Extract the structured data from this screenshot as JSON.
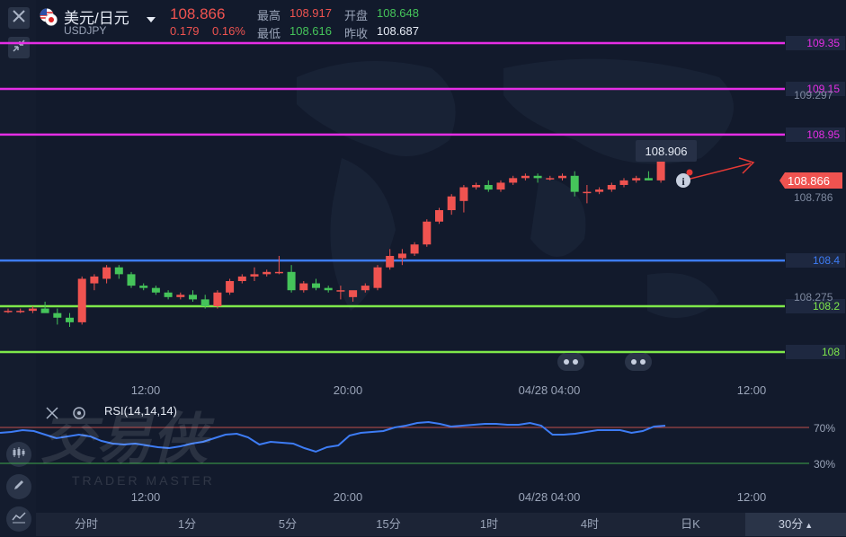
{
  "header": {
    "pair_name": "美元/日元",
    "pair_code": "USDJPY",
    "last_price": "108.866",
    "change": "0.179",
    "change_pct": "0.16%",
    "high_label": "最高",
    "high_value": "108.917",
    "low_label": "最低",
    "low_value": "108.616",
    "open_label": "开盘",
    "open_value": "108.648",
    "prev_close_label": "昨收",
    "prev_close_value": "108.687"
  },
  "levels": [
    {
      "price": 109.35,
      "label": "109.35",
      "color": "#e52ee5"
    },
    {
      "price": 109.15,
      "label": "109.15",
      "color": "#e52ee5"
    },
    {
      "price": 108.95,
      "label": "108.95",
      "color": "#e52ee5"
    },
    {
      "price": 108.4,
      "label": "108.4",
      "color": "#3d7cf5"
    },
    {
      "price": 108.2,
      "label": "108.2",
      "color": "#7ee84a"
    },
    {
      "price": 108.0,
      "label": "108",
      "color": "#7ee84a"
    }
  ],
  "price_axis_ticks": [
    "109.297",
    "108.786",
    "108.275"
  ],
  "current_price_tag": "108.866",
  "tooltip_value": "108.906",
  "time_labels": [
    "12:00",
    "20:00",
    "04/28 04:00",
    "12:00"
  ],
  "rsi": {
    "label": "RSI(14,14,14)",
    "levels": [
      "70%",
      "30%"
    ],
    "values": [
      64,
      65,
      67,
      66,
      62,
      58,
      60,
      62,
      60,
      55,
      52,
      51,
      52,
      50,
      48,
      47,
      49,
      52,
      54,
      58,
      62,
      63,
      59,
      51,
      54,
      53,
      52,
      47,
      43,
      48,
      50,
      61,
      64,
      65,
      66,
      70,
      72,
      75,
      76,
      74,
      71,
      72,
      73,
      74,
      74,
      73,
      73,
      75,
      72,
      62,
      62,
      63,
      65,
      67,
      67,
      67,
      64,
      66,
      71,
      72
    ]
  },
  "chart_data": {
    "type": "candlestick",
    "title": "",
    "xlabel": "",
    "ylabel": "",
    "ylim": [
      107.9,
      109.43
    ],
    "candles": [
      [
        108.18,
        108.19,
        108.17,
        108.18
      ],
      [
        108.18,
        108.19,
        108.17,
        108.18
      ],
      [
        108.18,
        108.2,
        108.17,
        108.19
      ],
      [
        108.19,
        108.22,
        108.18,
        108.17
      ],
      [
        108.17,
        108.19,
        108.12,
        108.15
      ],
      [
        108.15,
        108.17,
        108.11,
        108.13
      ],
      [
        108.13,
        108.33,
        108.12,
        108.32
      ],
      [
        108.3,
        108.34,
        108.27,
        108.33
      ],
      [
        108.32,
        108.38,
        108.3,
        108.37
      ],
      [
        108.37,
        108.38,
        108.32,
        108.34
      ],
      [
        108.34,
        108.35,
        108.28,
        108.29
      ],
      [
        108.29,
        108.3,
        108.27,
        108.28
      ],
      [
        108.28,
        108.29,
        108.25,
        108.26
      ],
      [
        108.26,
        108.27,
        108.23,
        108.24
      ],
      [
        108.24,
        108.26,
        108.23,
        108.25
      ],
      [
        108.25,
        108.27,
        108.22,
        108.23
      ],
      [
        108.23,
        108.25,
        108.19,
        108.2
      ],
      [
        108.2,
        108.27,
        108.19,
        108.26
      ],
      [
        108.26,
        108.32,
        108.25,
        108.31
      ],
      [
        108.31,
        108.34,
        108.3,
        108.33
      ],
      [
        108.33,
        108.37,
        108.31,
        108.34
      ],
      [
        108.34,
        108.36,
        108.33,
        108.35
      ],
      [
        108.35,
        108.42,
        108.34,
        108.35
      ],
      [
        108.35,
        108.38,
        108.26,
        108.27
      ],
      [
        108.27,
        108.31,
        108.26,
        108.3
      ],
      [
        108.3,
        108.32,
        108.27,
        108.28
      ],
      [
        108.28,
        108.29,
        108.26,
        108.27
      ],
      [
        108.27,
        108.29,
        108.23,
        108.27
      ],
      [
        108.24,
        108.26,
        108.22,
        108.27
      ],
      [
        108.27,
        108.3,
        108.26,
        108.29
      ],
      [
        108.28,
        108.38,
        108.27,
        108.37
      ],
      [
        108.37,
        108.45,
        108.36,
        108.42
      ],
      [
        108.41,
        108.45,
        108.38,
        108.43
      ],
      [
        108.43,
        108.48,
        108.42,
        108.47
      ],
      [
        108.47,
        108.58,
        108.46,
        108.57
      ],
      [
        108.57,
        108.63,
        108.56,
        108.62
      ],
      [
        108.62,
        108.69,
        108.6,
        108.68
      ],
      [
        108.66,
        108.73,
        108.61,
        108.72
      ],
      [
        108.72,
        108.74,
        108.71,
        108.73
      ],
      [
        108.73,
        108.75,
        108.7,
        108.71
      ],
      [
        108.71,
        108.75,
        108.7,
        108.74
      ],
      [
        108.74,
        108.77,
        108.73,
        108.76
      ],
      [
        108.76,
        108.78,
        108.75,
        108.77
      ],
      [
        108.77,
        108.78,
        108.74,
        108.76
      ],
      [
        108.76,
        108.77,
        108.75,
        108.76
      ],
      [
        108.76,
        108.78,
        108.75,
        108.77
      ],
      [
        108.77,
        108.79,
        108.68,
        108.7
      ],
      [
        108.7,
        108.73,
        108.65,
        108.7
      ],
      [
        108.7,
        108.72,
        108.69,
        108.71
      ],
      [
        108.71,
        108.74,
        108.7,
        108.73
      ],
      [
        108.73,
        108.76,
        108.72,
        108.75
      ],
      [
        108.75,
        108.77,
        108.74,
        108.76
      ],
      [
        108.76,
        108.79,
        108.75,
        108.75
      ],
      [
        108.75,
        108.86,
        108.74,
        108.85
      ],
      [
        108.85,
        108.92,
        108.84,
        108.86
      ]
    ]
  }
}
